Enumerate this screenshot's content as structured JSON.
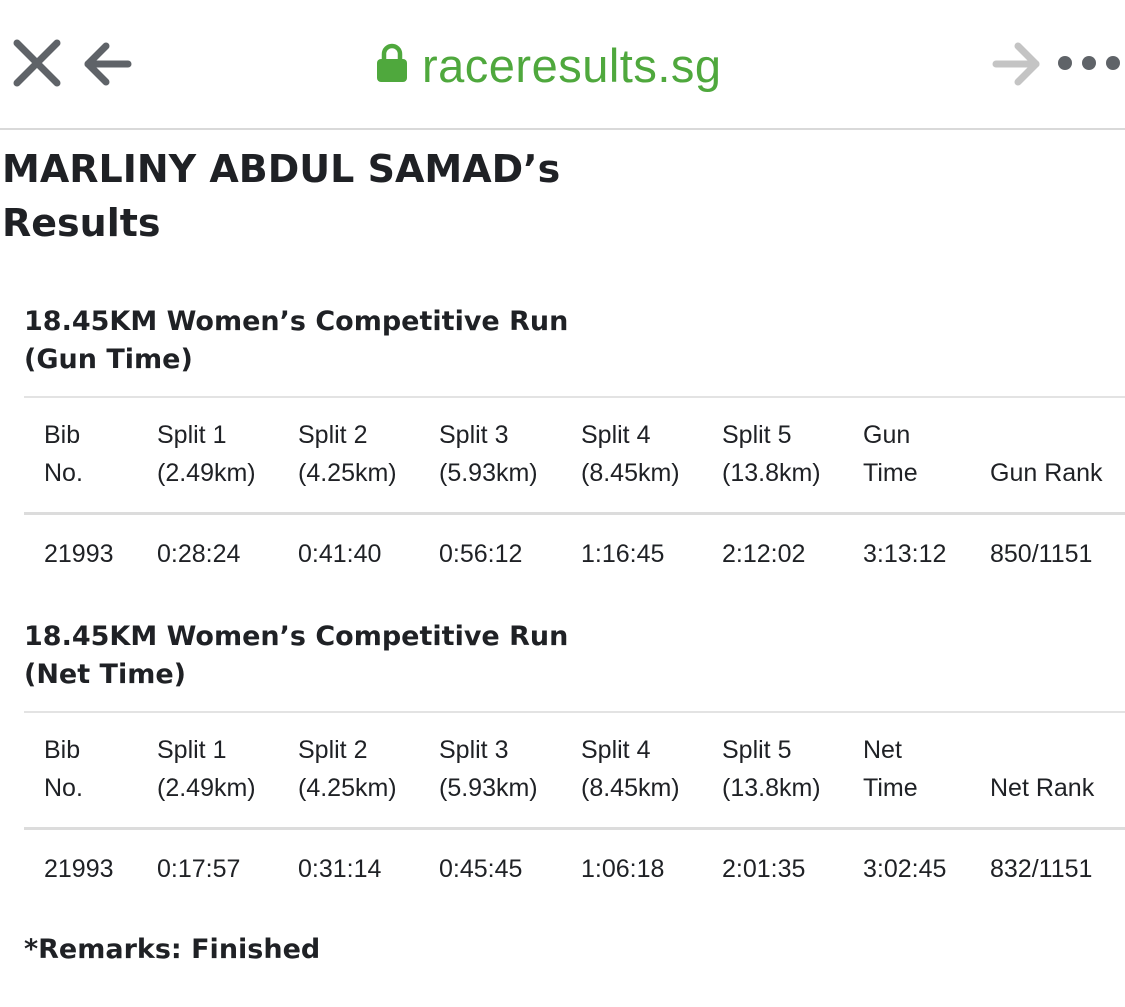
{
  "browser": {
    "url": "raceresults.sg",
    "secure_icon": "lock-icon",
    "close_icon": "close-icon",
    "back_icon": "back-arrow-icon",
    "forward_icon": "forward-arrow-icon",
    "more_icon": "more-dots-icon",
    "url_color": "#4fa83d",
    "icon_color": "#5f6368",
    "disabled_icon_color": "#c4c4c4"
  },
  "page": {
    "heading_line1": "MARLINY ABDUL SAMAD’s",
    "heading_line2": "Results"
  },
  "sections": [
    {
      "title_line1": "18.45KM Women’s Competitive Run",
      "title_line2": "(Gun Time)",
      "headers": [
        {
          "line1": "Bib",
          "line2": "No."
        },
        {
          "line1": "Split 1",
          "line2": "(2.49km)"
        },
        {
          "line1": "Split 2",
          "line2": "(4.25km)"
        },
        {
          "line1": "Split 3",
          "line2": "(5.93km)"
        },
        {
          "line1": "Split 4",
          "line2": "(8.45km)"
        },
        {
          "line1": "Split 5",
          "line2": "(13.8km)"
        },
        {
          "line1": "Gun",
          "line2": "Time"
        },
        {
          "line1": "Gun Rank"
        }
      ],
      "row": [
        "21993",
        "0:28:24",
        "0:41:40",
        "0:56:12",
        "1:16:45",
        "2:12:02",
        "3:13:12",
        "850/1151"
      ]
    },
    {
      "title_line1": "18.45KM Women’s Competitive Run",
      "title_line2": "(Net Time)",
      "headers": [
        {
          "line1": "Bib",
          "line2": "No."
        },
        {
          "line1": "Split 1",
          "line2": "(2.49km)"
        },
        {
          "line1": "Split 2",
          "line2": "(4.25km)"
        },
        {
          "line1": "Split 3",
          "line2": "(5.93km)"
        },
        {
          "line1": "Split 4",
          "line2": "(8.45km)"
        },
        {
          "line1": "Split 5",
          "line2": "(13.8km)"
        },
        {
          "line1": "Net",
          "line2": "Time"
        },
        {
          "line1": "Net Rank"
        }
      ],
      "row": [
        "21993",
        "0:17:57",
        "0:31:14",
        "0:45:45",
        "1:06:18",
        "2:01:35",
        "3:02:45",
        "832/1151"
      ]
    }
  ],
  "remarks": "*Remarks: Finished"
}
